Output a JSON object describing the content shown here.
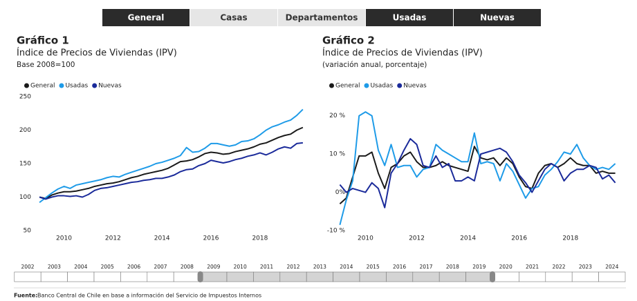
{
  "tabs": [
    {
      "label": "General",
      "selected": true
    },
    {
      "label": "Casas",
      "selected": false
    },
    {
      "label": "Departamentos",
      "selected": false
    },
    {
      "label": "Usadas",
      "selected": true
    },
    {
      "label": "Nuevas",
      "selected": true
    }
  ],
  "chart_data": [
    {
      "type": "line",
      "title": "Gráfico 1",
      "subtitle": "Índice de Precios de Viviendas (IPV)",
      "note": "Base 2008=100",
      "x": [
        2009,
        2009.25,
        2009.5,
        2009.75,
        2010,
        2010.25,
        2010.5,
        2010.75,
        2011,
        2011.25,
        2011.5,
        2011.75,
        2012,
        2012.25,
        2012.5,
        2012.75,
        2013,
        2013.25,
        2013.5,
        2013.75,
        2014,
        2014.25,
        2014.5,
        2014.75,
        2015,
        2015.25,
        2015.5,
        2015.75,
        2016,
        2016.25,
        2016.5,
        2016.75,
        2017,
        2017.25,
        2017.5,
        2017.75,
        2018,
        2018.25,
        2018.5,
        2018.75,
        2019,
        2019.25,
        2019.5,
        2019.75
      ],
      "series": [
        {
          "name": "General",
          "color": "#1a1a1a",
          "values": [
            100,
            98,
            103,
            106,
            108,
            108,
            109,
            111,
            113,
            116,
            118,
            120,
            121,
            123,
            126,
            129,
            131,
            134,
            136,
            138,
            140,
            143,
            148,
            153,
            154,
            156,
            160,
            165,
            167,
            166,
            164,
            165,
            168,
            170,
            172,
            175,
            179,
            181,
            185,
            189,
            192,
            194,
            200,
            204
          ]
        },
        {
          "name": "Usadas",
          "color": "#1e9be8",
          "values": [
            92,
            99,
            106,
            112,
            116,
            113,
            118,
            120,
            122,
            124,
            126,
            129,
            131,
            130,
            134,
            137,
            140,
            143,
            146,
            150,
            152,
            155,
            158,
            162,
            174,
            167,
            168,
            173,
            180,
            180,
            178,
            176,
            178,
            183,
            184,
            187,
            193,
            200,
            205,
            208,
            212,
            215,
            222,
            231
          ]
        },
        {
          "name": "Nuevas",
          "color": "#1a2a9a",
          "values": [
            100,
            97,
            100,
            102,
            102,
            101,
            102,
            100,
            104,
            110,
            113,
            114,
            116,
            118,
            120,
            122,
            123,
            125,
            126,
            128,
            128,
            130,
            133,
            138,
            141,
            142,
            147,
            150,
            155,
            153,
            151,
            153,
            156,
            158,
            161,
            163,
            166,
            163,
            167,
            172,
            175,
            173,
            180,
            181
          ]
        }
      ],
      "xlim": [
        2008.8,
        2019.95
      ],
      "xticks": [
        2010,
        2012,
        2014,
        2016,
        2018
      ],
      "ylim": [
        50,
        250
      ],
      "yticks": [
        50,
        100,
        150,
        200,
        250
      ],
      "grid": false,
      "legend": "top-left"
    },
    {
      "type": "line",
      "title": "Gráfico 2",
      "subtitle": "Índice de Precios de Viviendas (IPV)",
      "note": "(variación anual, porcentaje)",
      "x": [
        2009,
        2009.25,
        2009.5,
        2009.75,
        2010,
        2010.25,
        2010.5,
        2010.75,
        2011,
        2011.25,
        2011.5,
        2011.75,
        2012,
        2012.25,
        2012.5,
        2012.75,
        2013,
        2013.25,
        2013.5,
        2013.75,
        2014,
        2014.25,
        2014.5,
        2014.75,
        2015,
        2015.25,
        2015.5,
        2015.75,
        2016,
        2016.25,
        2016.5,
        2016.75,
        2017,
        2017.25,
        2017.5,
        2017.75,
        2018,
        2018.25,
        2018.5,
        2018.75,
        2019,
        2019.25,
        2019.5,
        2019.75
      ],
      "series": [
        {
          "name": "General",
          "color": "#1a1a1a",
          "values": [
            -3,
            -1.5,
            4,
            9.5,
            9.5,
            10.5,
            5,
            1,
            6.5,
            7.5,
            9.5,
            10.5,
            8,
            6.5,
            6.5,
            7,
            8,
            7,
            6.5,
            6,
            5.5,
            12,
            9,
            8.5,
            9,
            7,
            9,
            7.5,
            4,
            1.5,
            1,
            5,
            7,
            7.5,
            6.5,
            7.5,
            9,
            7.5,
            7,
            7,
            5,
            5.5,
            5,
            5
          ]
        },
        {
          "name": "Usadas",
          "color": "#1e9be8",
          "values": [
            -8.5,
            -2,
            3,
            20,
            21,
            20,
            11,
            7,
            12.5,
            6.5,
            7,
            7,
            4,
            6,
            6.5,
            12.5,
            11,
            10,
            9,
            8,
            8,
            15.5,
            7.5,
            8,
            7.5,
            3,
            7.5,
            5.5,
            2,
            -1.5,
            1,
            1.5,
            4.5,
            6,
            8,
            10.5,
            10,
            12.5,
            9,
            7,
            6,
            6.5,
            6,
            7.5
          ]
        },
        {
          "name": "Nuevas",
          "color": "#1a2a9a",
          "values": [
            2,
            0,
            1,
            0.5,
            0,
            2.5,
            1,
            -4,
            5,
            7.5,
            11,
            14,
            12.5,
            7,
            6.5,
            9.5,
            6.5,
            7.5,
            3,
            3,
            4,
            3,
            10,
            10.5,
            11,
            11.5,
            10.5,
            8,
            4.5,
            2.5,
            0,
            3,
            6,
            7.5,
            6.5,
            3,
            5,
            6,
            6,
            7,
            6.5,
            3.5,
            4.5,
            2.5
          ]
        }
      ],
      "xlim": [
        2008.8,
        2019.95
      ],
      "xticks": [
        2010,
        2012,
        2014,
        2016,
        2018
      ],
      "ylim": [
        -10,
        25
      ],
      "yticks": [
        {
          "value": -10,
          "label": "-10 %"
        },
        {
          "value": 0,
          "label": "0%"
        },
        {
          "value": 10,
          "label": "10 %"
        },
        {
          "value": 20,
          "label": "20 %"
        }
      ],
      "grid": false,
      "legend": "top-left"
    }
  ],
  "timeline": {
    "years": [
      "2002",
      "2003",
      "2004",
      "2005",
      "2006",
      "2007",
      "2008",
      "2009",
      "2010",
      "2011",
      "2012",
      "2013",
      "2014",
      "2015",
      "2016",
      "2017",
      "2018",
      "2019",
      "2020",
      "2021",
      "2022",
      "2023",
      "2024"
    ],
    "selected": [
      "2009",
      "2019"
    ]
  },
  "source": {
    "label": "Fuente:",
    "text": "Banco Central de Chile en base a información del Servicio de Impuestos Internos"
  }
}
